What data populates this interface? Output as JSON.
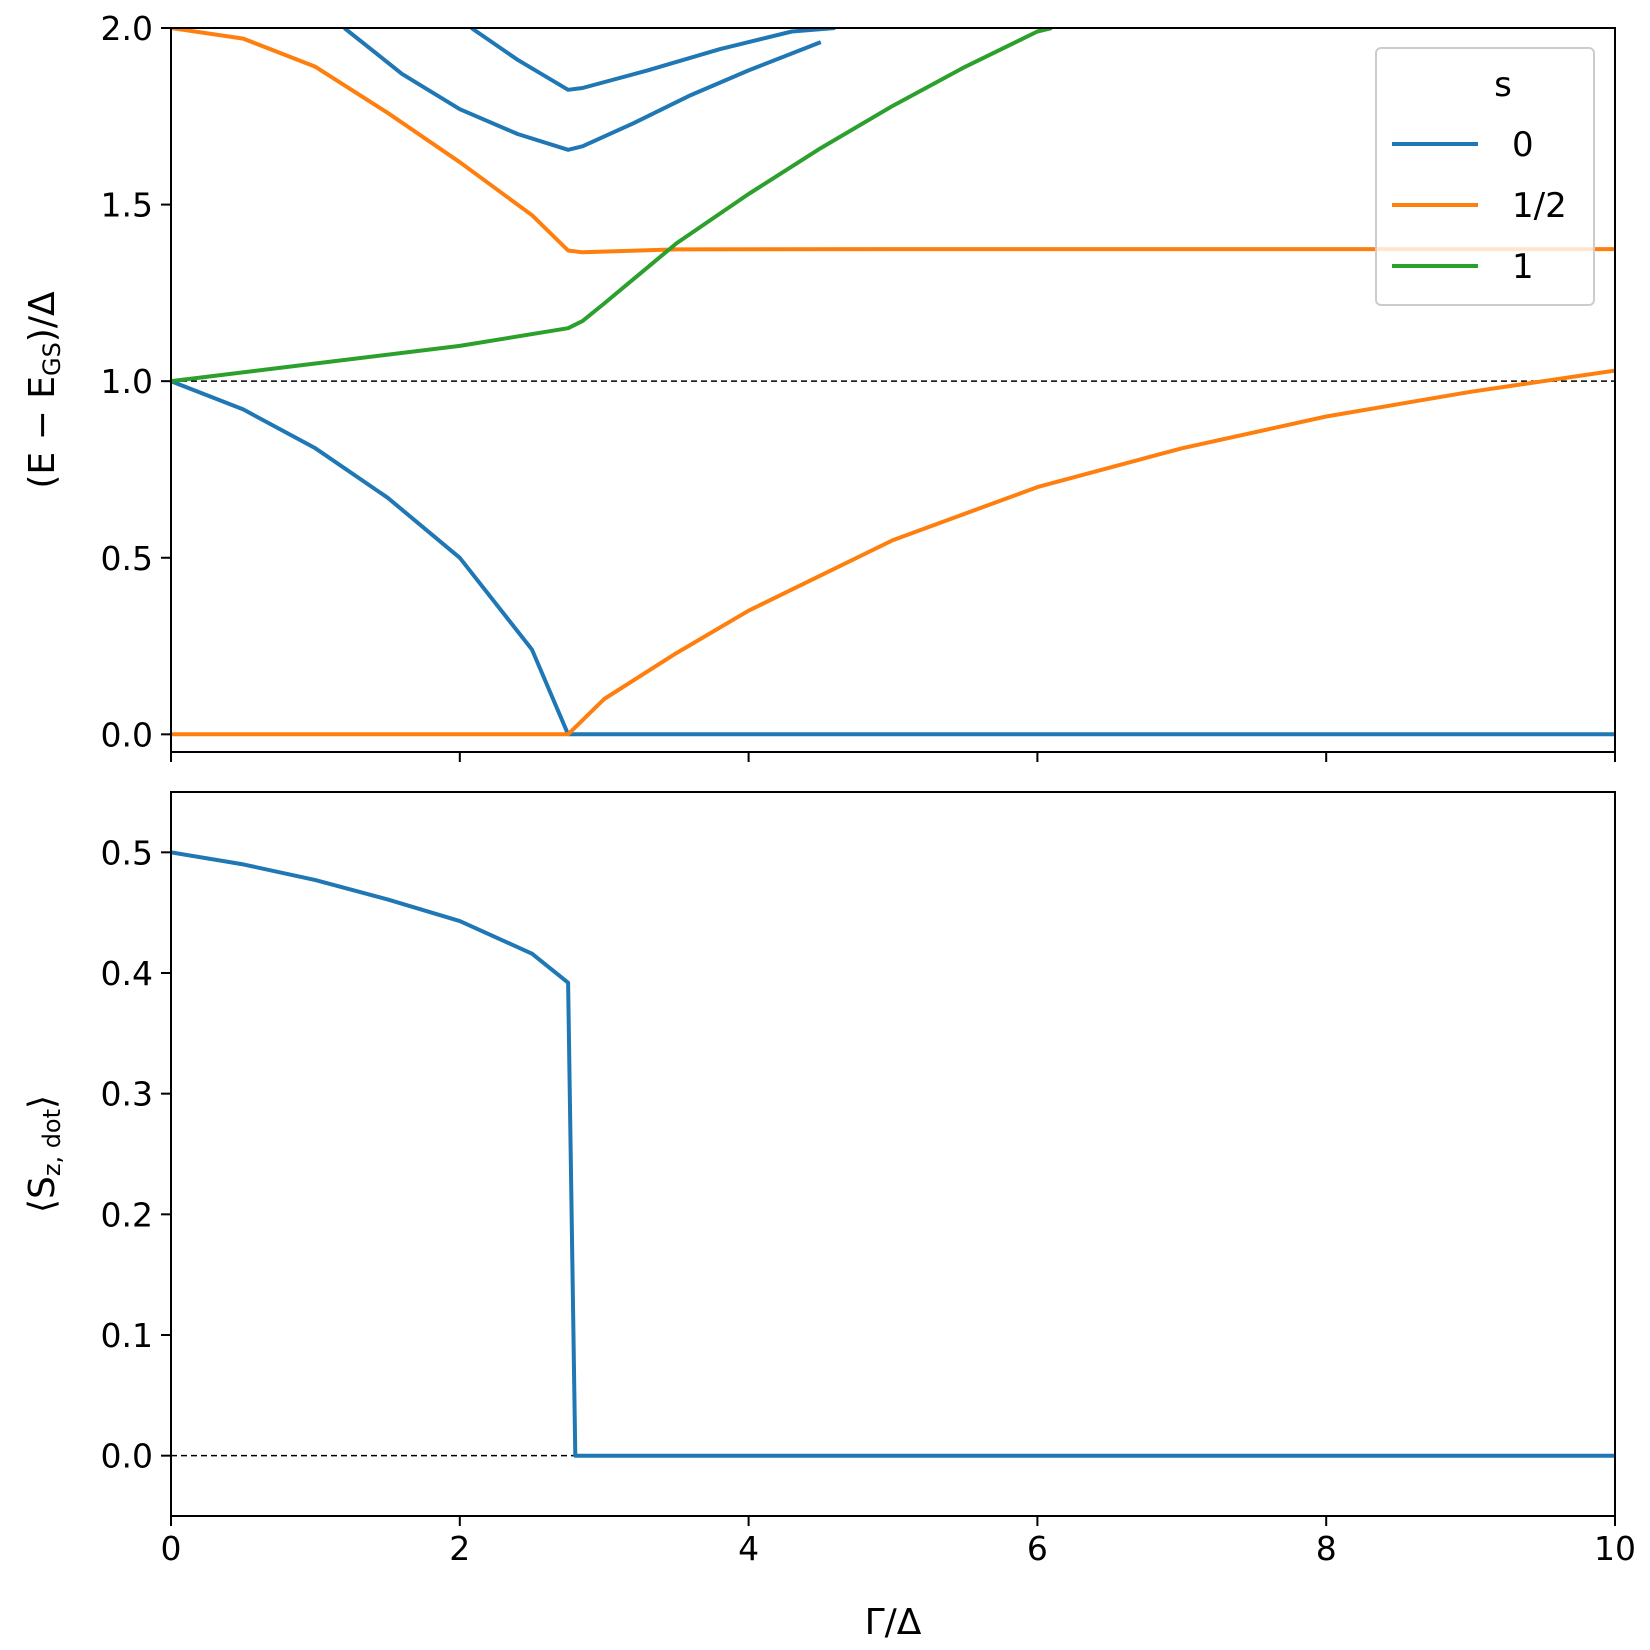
{
  "chart_data": [
    {
      "type": "line",
      "panel": "top",
      "ylabel": "(E − E_GS)/Δ",
      "ylabel_main": "(E − E",
      "ylabel_sub": "GS",
      "ylabel_tail": ")/Δ",
      "xlim": [
        0,
        10
      ],
      "ylim": [
        -0.05,
        2.0
      ],
      "yticks": [
        0.0,
        0.5,
        1.0,
        1.5,
        2.0
      ],
      "ytick_labels": [
        "0.0",
        "0.5",
        "1.0",
        "1.5",
        "2.0"
      ],
      "xticks": [
        0,
        2,
        4,
        6,
        8,
        10
      ],
      "reference_line": 1.0,
      "legend": {
        "title": "s",
        "placement": "top-right",
        "entries": [
          {
            "label": "0",
            "color": "#1f77b4"
          },
          {
            "label": "1/2",
            "color": "#ff7f0e"
          },
          {
            "label": "1",
            "color": "#2ca02c"
          }
        ]
      },
      "series": [
        {
          "color": "#1f77b4",
          "x": [
            0,
            0.5,
            1.0,
            1.5,
            2.0,
            2.5,
            2.75,
            3,
            4,
            5,
            6,
            7,
            8,
            9,
            10
          ],
          "y": [
            1.0,
            0.92,
            0.81,
            0.67,
            0.5,
            0.24,
            0.0,
            0.0,
            0.0,
            0.0,
            0.0,
            0.0,
            0.0,
            0.0,
            0.0
          ]
        },
        {
          "color": "#1f77b4",
          "x": [
            1.2,
            1.6,
            2.0,
            2.4,
            2.75,
            2.85,
            3.2,
            3.6,
            4.0,
            4.5
          ],
          "y": [
            2.0,
            1.87,
            1.77,
            1.7,
            1.655,
            1.665,
            1.73,
            1.81,
            1.88,
            1.96
          ]
        },
        {
          "color": "#1f77b4",
          "x": [
            2.08,
            2.4,
            2.75,
            2.85,
            3.3,
            3.8,
            4.3,
            4.6
          ],
          "y": [
            2.0,
            1.91,
            1.825,
            1.83,
            1.88,
            1.94,
            1.99,
            2.0
          ]
        },
        {
          "color": "#ff7f0e",
          "x": [
            0,
            0.5,
            1.0,
            1.5,
            2.0,
            2.5,
            2.75,
            2.85,
            3.5,
            5,
            7,
            10
          ],
          "y": [
            2.0,
            1.97,
            1.89,
            1.76,
            1.62,
            1.47,
            1.37,
            1.365,
            1.373,
            1.374,
            1.374,
            1.374
          ]
        },
        {
          "color": "#ff7f0e",
          "x": [
            0,
            1,
            2,
            2.75,
            3,
            3.5,
            4,
            5,
            6,
            7,
            8,
            9,
            10
          ],
          "y": [
            0.0,
            0.0,
            0.0,
            0.0,
            0.1,
            0.23,
            0.35,
            0.55,
            0.7,
            0.81,
            0.9,
            0.97,
            1.03
          ]
        },
        {
          "color": "#2ca02c",
          "x": [
            0,
            1,
            2,
            2.75,
            2.85,
            3,
            3.5,
            4,
            4.5,
            5,
            5.5,
            6,
            6.1
          ],
          "y": [
            1.0,
            1.05,
            1.1,
            1.15,
            1.17,
            1.22,
            1.39,
            1.53,
            1.66,
            1.78,
            1.89,
            1.99,
            2.0
          ]
        }
      ]
    },
    {
      "type": "line",
      "panel": "bottom",
      "xlabel": "Γ/Δ",
      "ylabel": "⟨S_z,dot⟩",
      "ylabel_main": "⟨S",
      "ylabel_sub": "z, dot",
      "ylabel_tail": "⟩",
      "xlim": [
        0,
        10
      ],
      "ylim": [
        -0.05,
        0.55
      ],
      "yticks": [
        0.0,
        0.1,
        0.2,
        0.3,
        0.4,
        0.5
      ],
      "ytick_labels": [
        "0.0",
        "0.1",
        "0.2",
        "0.3",
        "0.4",
        "0.5"
      ],
      "xticks": [
        0,
        2,
        4,
        6,
        8,
        10
      ],
      "xtick_labels": [
        "0",
        "2",
        "4",
        "6",
        "8",
        "10"
      ],
      "reference_line": 0.0,
      "reference_line_xmax": 2.8,
      "series": [
        {
          "color": "#1f77b4",
          "x": [
            0,
            0.5,
            1.0,
            1.5,
            2.0,
            2.5,
            2.75,
            2.8,
            3,
            4,
            5,
            6,
            7,
            8,
            9,
            10
          ],
          "y": [
            0.5,
            0.49,
            0.477,
            0.461,
            0.443,
            0.416,
            0.392,
            0.0,
            0.0,
            0.0,
            0.0,
            0.0,
            0.0,
            0.0,
            0.0,
            0.0
          ]
        }
      ]
    }
  ]
}
